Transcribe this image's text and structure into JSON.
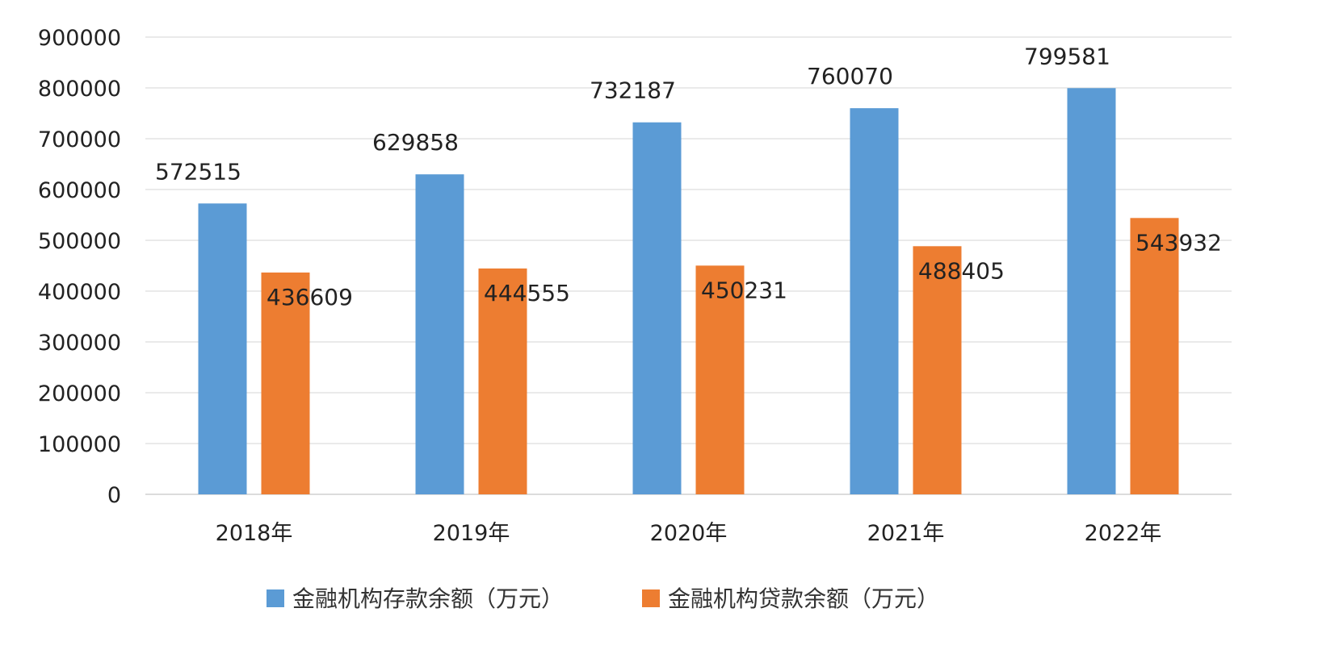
{
  "chart_data": {
    "type": "bar",
    "title": "",
    "xlabel": "",
    "ylabel": "",
    "categories": [
      "2018年",
      "2019年",
      "2020年",
      "2021年",
      "2022年"
    ],
    "series": [
      {
        "name": "金融机构存款余额（万元）",
        "color": "#5b9bd5",
        "values": [
          572515,
          629858,
          732187,
          760070,
          799581
        ]
      },
      {
        "name": "金融机构贷款余额（万元）",
        "color": "#ed7d31",
        "values": [
          436609,
          444555,
          450231,
          488405,
          543932
        ]
      }
    ],
    "ylim": [
      0,
      900000
    ],
    "yticks": [
      "0",
      "100000",
      "200000",
      "300000",
      "400000",
      "500000",
      "600000",
      "700000",
      "800000",
      "900000"
    ],
    "grid": true,
    "legend_position": "bottom"
  }
}
